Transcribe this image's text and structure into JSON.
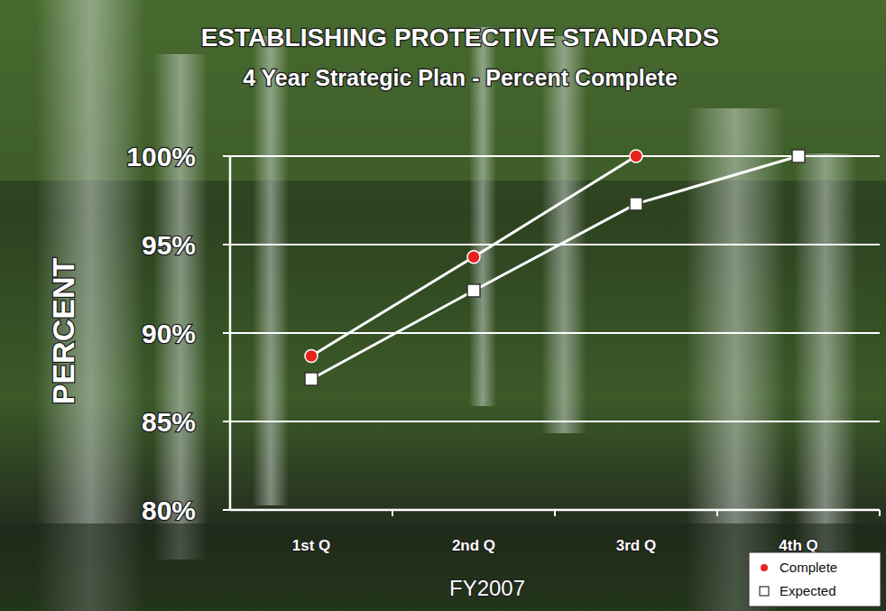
{
  "chart_data": {
    "type": "line",
    "title": "ESTABLISHING PROTECTIVE STANDARDS",
    "subtitle": "4 Year Strategic Plan - Percent Complete",
    "x_label": "FY2007",
    "y_label": "PERCENT",
    "categories": [
      "1st Q",
      "2nd Q",
      "3rd Q",
      "4th Q"
    ],
    "series": [
      {
        "name": "Complete",
        "color": "#e8231f",
        "marker": "circle",
        "values": [
          88.7,
          94.3,
          100,
          null
        ]
      },
      {
        "name": "Expected",
        "color": "#ffffff",
        "marker": "square",
        "values": [
          87.4,
          92.4,
          97.3,
          100
        ]
      }
    ],
    "ylim": [
      80,
      100
    ],
    "yticks": [
      {
        "value": 80,
        "label": "80%"
      },
      {
        "value": 85,
        "label": "85%"
      },
      {
        "value": 90,
        "label": "90%"
      },
      {
        "value": 95,
        "label": "95%"
      },
      {
        "value": 100,
        "label": "100%"
      }
    ],
    "grid": true,
    "legend": "lower right"
  }
}
